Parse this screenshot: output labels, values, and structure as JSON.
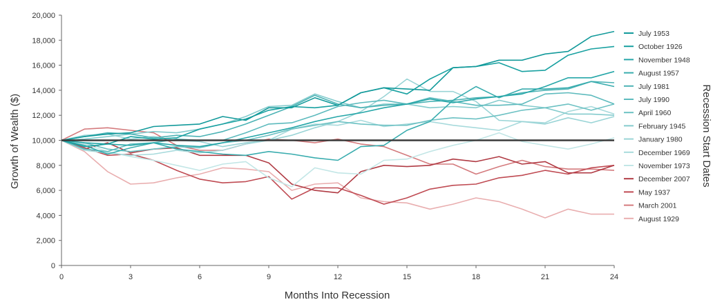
{
  "chart_data": {
    "type": "line",
    "xlabel": "Months Into Recession",
    "ylabel": "Growth of Wealth ($)",
    "legend_title": "Recession Start Dates",
    "legend_position": "right",
    "xlim": [
      0,
      24
    ],
    "ylim": [
      0,
      20000
    ],
    "x_ticks": [
      "0",
      "3",
      "6",
      "9",
      "12",
      "15",
      "18",
      "21",
      "24"
    ],
    "y_ticks": [
      "0",
      "2,000",
      "4,000",
      "6,000",
      "8,000",
      "10,000",
      "12,000",
      "14,000",
      "16,000",
      "18,000",
      "20,000"
    ],
    "grid": false,
    "baseline": {
      "value": 10000,
      "color": "#3a3a3a"
    },
    "x": [
      0,
      1,
      2,
      3,
      4,
      5,
      6,
      7,
      8,
      9,
      10,
      11,
      12,
      13,
      14,
      15,
      16,
      17,
      18,
      19,
      20,
      21,
      22,
      23,
      24
    ],
    "series": [
      {
        "name": "July 1953",
        "color": "#11999a",
        "values": [
          10000,
          10300,
          10500,
          10600,
          11100,
          11200,
          11300,
          11900,
          11600,
          12600,
          12600,
          13400,
          12800,
          13800,
          14200,
          14100,
          14000,
          15800,
          15900,
          16400,
          16400,
          16900,
          17100,
          18300,
          18700
        ]
      },
      {
        "name": "October 1926",
        "color": "#17a0a0",
        "values": [
          10000,
          9500,
          9700,
          10300,
          10100,
          10200,
          10900,
          11300,
          11700,
          12400,
          12700,
          12600,
          12800,
          13800,
          14200,
          13700,
          14900,
          15800,
          15900,
          16200,
          15500,
          15600,
          16800,
          17300,
          17500
        ]
      },
      {
        "name": "November 1948",
        "color": "#25a6a8",
        "values": [
          10000,
          9800,
          9700,
          9600,
          9800,
          9600,
          9500,
          9800,
          10200,
          10600,
          11000,
          11500,
          11900,
          12200,
          12600,
          12900,
          13300,
          13000,
          13300,
          13500,
          13700,
          14300,
          15000,
          15000,
          15500
        ]
      },
      {
        "name": "August 1957",
        "color": "#38acae",
        "values": [
          10000,
          9600,
          8900,
          9400,
          9800,
          9300,
          9100,
          8900,
          8800,
          9100,
          8900,
          8600,
          8400,
          9500,
          9600,
          10800,
          11500,
          13200,
          14300,
          13400,
          14100,
          14100,
          14200,
          14700,
          14300
        ]
      },
      {
        "name": "July 1981",
        "color": "#4cb3b5",
        "values": [
          10000,
          10300,
          10600,
          10500,
          10200,
          10400,
          10300,
          10700,
          11300,
          12000,
          12700,
          13600,
          12900,
          12600,
          12800,
          12900,
          13100,
          13200,
          13400,
          13500,
          13800,
          14000,
          14100,
          14700,
          14600
        ]
      },
      {
        "name": "July 1990",
        "color": "#5cbabd",
        "values": [
          10000,
          9300,
          9100,
          9700,
          9800,
          10100,
          10000,
          10000,
          10600,
          11300,
          11400,
          12000,
          12700,
          13000,
          13200,
          12900,
          13400,
          13100,
          12800,
          12800,
          12900,
          13700,
          13800,
          13600,
          12900
        ]
      },
      {
        "name": "April 1960",
        "color": "#6cc1c3",
        "values": [
          10000,
          9800,
          9300,
          9100,
          9300,
          9500,
          9400,
          9800,
          10000,
          10400,
          10900,
          11200,
          11500,
          11300,
          11200,
          11200,
          11600,
          11800,
          11700,
          12000,
          12400,
          12600,
          12900,
          12400,
          12900
        ]
      },
      {
        "name": "February 1945",
        "color": "#84cbcd",
        "values": [
          10000,
          10100,
          10300,
          10500,
          10700,
          10600,
          10900,
          11300,
          11900,
          12700,
          12800,
          13700,
          13100,
          12600,
          12900,
          12900,
          12600,
          12700,
          12600,
          13200,
          12800,
          12600,
          12100,
          12100,
          12000
        ]
      },
      {
        "name": "January 1980",
        "color": "#99d4d6",
        "values": [
          10000,
          10400,
          10500,
          10100,
          10300,
          10000,
          9900,
          9500,
          9800,
          10000,
          10400,
          11000,
          11500,
          12300,
          13500,
          14900,
          13900,
          13900,
          13100,
          11600,
          11500,
          11300,
          11800,
          11400,
          11900
        ]
      },
      {
        "name": "December 1969",
        "color": "#a7dadc",
        "values": [
          10000,
          9200,
          9000,
          8800,
          8900,
          9200,
          9000,
          9200,
          9700,
          10000,
          10900,
          11300,
          11200,
          11600,
          11100,
          11300,
          11500,
          11200,
          11000,
          10800,
          11500,
          11400,
          12300,
          12700,
          12100
        ]
      },
      {
        "name": "November 1973",
        "color": "#c2e6e6",
        "values": [
          10000,
          9700,
          9100,
          8700,
          8400,
          8000,
          7600,
          8100,
          8300,
          7000,
          6300,
          7800,
          7400,
          7300,
          8400,
          8500,
          9100,
          9600,
          10000,
          10600,
          9900,
          9600,
          9300,
          9700,
          10200
        ]
      },
      {
        "name": "December 2007",
        "color": "#b03a43",
        "values": [
          10000,
          9300,
          9800,
          9000,
          9300,
          9400,
          8800,
          8800,
          8800,
          8200,
          6500,
          6000,
          5800,
          7500,
          8000,
          7900,
          8000,
          8500,
          8300,
          8700,
          8100,
          8300,
          7400,
          7400,
          8000
        ]
      },
      {
        "name": "May 1937",
        "color": "#bf4a52",
        "values": [
          10000,
          9400,
          8800,
          8900,
          8400,
          7600,
          6900,
          6600,
          6700,
          7100,
          5300,
          6200,
          6200,
          5600,
          4900,
          5400,
          6100,
          6400,
          6500,
          7000,
          7200,
          7600,
          7300,
          7800,
          8000
        ]
      },
      {
        "name": "March 2001",
        "color": "#d47a7d",
        "values": [
          10000,
          10900,
          11000,
          10800,
          10600,
          9600,
          9200,
          9200,
          9700,
          10100,
          10000,
          9800,
          10100,
          9700,
          9500,
          8800,
          8100,
          8100,
          7300,
          7900,
          8400,
          7900,
          7700,
          7700,
          7600
        ]
      },
      {
        "name": "August 1929",
        "color": "#e9aeaf",
        "values": [
          10000,
          9100,
          7500,
          6500,
          6600,
          7000,
          7300,
          7800,
          7700,
          7500,
          6000,
          6500,
          6600,
          5400,
          5100,
          5000,
          4500,
          4900,
          5400,
          5100,
          4500,
          3800,
          4500,
          4100,
          4100
        ]
      }
    ]
  }
}
